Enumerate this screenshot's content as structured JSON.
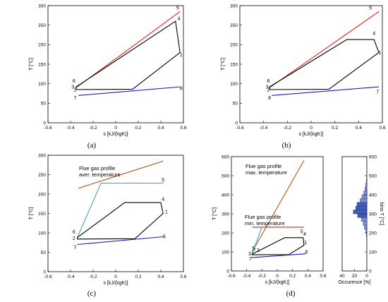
{
  "colors": {
    "red": "#e8201a",
    "brown": "#b5541a",
    "black": "#000000",
    "blue": "#1a1acc",
    "cyan": "#4aa3c6",
    "hist_fill": "#7b8fd6",
    "hist_fill_dark": "#3e5db3"
  },
  "chart_data": [
    {
      "type": "line",
      "panel_label": "(a)",
      "xlabel": "s [kJ/(kgK)]",
      "ylabel": "T [°C]",
      "xlim": [
        -0.6,
        0.6
      ],
      "ylim": [
        0,
        300
      ],
      "xticks": [
        -0.6,
        -0.4,
        -0.2,
        0,
        0.2,
        0.4,
        0.6
      ],
      "yticks": [
        0,
        50,
        100,
        150,
        200,
        250,
        300
      ],
      "xtick_labels": [
        "-0.6",
        "-0.4",
        "-0.2",
        "0",
        "0.2",
        "0.4",
        "0.6"
      ],
      "ytick_labels": [
        "0",
        "50",
        "100",
        "150",
        "200",
        "250",
        "300"
      ],
      "series": [
        {
          "color": "red",
          "x": [
            -0.35,
            0.1,
            0.57
          ],
          "y": [
            90,
            185,
            285
          ]
        },
        {
          "color": "black",
          "closed": true,
          "x": [
            -0.35,
            0.15,
            0.57,
            0.53,
            -0.35
          ],
          "y": [
            85,
            86,
            180,
            260,
            92
          ]
        },
        {
          "color": "blue",
          "x": [
            -0.33,
            0.57
          ],
          "y": [
            70,
            92
          ]
        }
      ],
      "point_labels": [
        {
          "label": "1",
          "x": 0.58,
          "y": 170
        },
        {
          "label": "2",
          "x": -0.36,
          "y": 80
        },
        {
          "label": "3",
          "x": -0.38,
          "y": 88
        },
        {
          "label": "4",
          "x": 0.56,
          "y": 263
        },
        {
          "label": "5",
          "x": 0.55,
          "y": 290
        },
        {
          "label": "6",
          "x": -0.37,
          "y": 103
        },
        {
          "label": "7",
          "x": -0.36,
          "y": 60
        },
        {
          "label": "8",
          "x": 0.58,
          "y": 84
        }
      ]
    },
    {
      "type": "line",
      "panel_label": "(b)",
      "xlabel": "s [kJ/(kgK)]",
      "ylabel": "T [°C]",
      "xlim": [
        -0.6,
        0.6
      ],
      "ylim": [
        0,
        300
      ],
      "xticks": [
        -0.6,
        -0.4,
        -0.2,
        0,
        0.2,
        0.4,
        0.6
      ],
      "yticks": [
        0,
        50,
        100,
        150,
        200,
        250,
        300
      ],
      "xtick_labels": [
        "-0.6",
        "-0.4",
        "-0.2",
        "0",
        "0.2",
        "0.4",
        "0.6"
      ],
      "ytick_labels": [
        "0",
        "50",
        "100",
        "150",
        "200",
        "250",
        "300"
      ],
      "series": [
        {
          "color": "red",
          "x": [
            -0.35,
            0.1,
            0.57
          ],
          "y": [
            90,
            185,
            285
          ]
        },
        {
          "color": "black",
          "closed": true,
          "x": [
            -0.35,
            0.15,
            0.57,
            0.53,
            0.3,
            -0.35
          ],
          "y": [
            85,
            86,
            180,
            213,
            213,
            92
          ]
        },
        {
          "color": "blue",
          "x": [
            -0.33,
            0.57
          ],
          "y": [
            70,
            92
          ]
        }
      ],
      "point_labels": [
        {
          "label": "1",
          "x": 0.58,
          "y": 175
        },
        {
          "label": "2",
          "x": -0.36,
          "y": 80
        },
        {
          "label": "3",
          "x": -0.37,
          "y": 88
        },
        {
          "label": "4",
          "x": 0.53,
          "y": 225
        },
        {
          "label": "5",
          "x": 0.5,
          "y": 290
        },
        {
          "label": "6",
          "x": -0.36,
          "y": 103
        },
        {
          "label": "7",
          "x": 0.56,
          "y": 75
        },
        {
          "label": "8",
          "x": -0.35,
          "y": 60
        }
      ]
    },
    {
      "type": "line",
      "panel_label": "(c)",
      "xlabel": "s [kJ/(kgK)]",
      "ylabel": "T [°C]",
      "xlim": [
        -0.6,
        0.6
      ],
      "ylim": [
        0,
        300
      ],
      "xticks": [
        -0.6,
        -0.4,
        -0.2,
        0,
        0.2,
        0.4,
        0.6
      ],
      "yticks": [
        0,
        50,
        100,
        150,
        200,
        250,
        300
      ],
      "xtick_labels": [
        "-0.6",
        "-0.4",
        "-0.2",
        "0",
        "0.2",
        "0.4",
        "0.6"
      ],
      "ytick_labels": [
        "0",
        "50",
        "100",
        "150",
        "200",
        "250",
        "300"
      ],
      "annotation": [
        "Flue gas profile",
        "aver. temperature"
      ],
      "series": [
        {
          "color": "brown",
          "x": [
            -0.33,
            0.42
          ],
          "y": [
            215,
            285
          ]
        },
        {
          "color": "cyan",
          "x": [
            -0.34,
            -0.13,
            0.42
          ],
          "y": [
            88,
            228,
            228
          ]
        },
        {
          "color": "black",
          "closed": true,
          "x": [
            -0.34,
            0.17,
            0.42,
            0.4,
            0.08,
            -0.34
          ],
          "y": [
            84,
            85,
            150,
            178,
            178,
            88
          ]
        },
        {
          "color": "blue",
          "x": [
            -0.34,
            0.42
          ],
          "y": [
            70,
            90
          ]
        }
      ],
      "point_labels": [
        {
          "label": "1",
          "x": 0.45,
          "y": 150
        },
        {
          "label": "2",
          "x": -0.37,
          "y": 82
        },
        {
          "label": "4",
          "x": 0.42,
          "y": 183
        },
        {
          "label": "5",
          "x": 0.42,
          "y": 232
        },
        {
          "label": "6",
          "x": -0.37,
          "y": 98
        },
        {
          "label": "7",
          "x": -0.36,
          "y": 58
        },
        {
          "label": "8",
          "x": 0.43,
          "y": 86
        }
      ]
    },
    {
      "type": "line",
      "panel_label": "(d)",
      "xlabel": "s [kJ/(kgK)]",
      "ylabel": "T [°C]",
      "xlim": [
        -0.6,
        0.6
      ],
      "ylim": [
        0,
        600
      ],
      "xticks": [
        -0.6,
        -0.4,
        -0.2,
        0,
        0.2,
        0.4,
        0.6
      ],
      "yticks": [
        0,
        100,
        200,
        300,
        400,
        500,
        600
      ],
      "xtick_labels": [
        "-0.6",
        "-0.4",
        "-0.2",
        "0",
        "0.2",
        "0.4",
        "0.6"
      ],
      "ytick_labels": [
        "0",
        "100",
        "200",
        "300",
        "400",
        "500",
        "600"
      ],
      "annotations": [
        {
          "lines": [
            "Flue gas profile",
            "max. temperature"
          ]
        },
        {
          "lines": [
            "Flue gas profile",
            "min. temperature"
          ]
        }
      ],
      "series": [
        {
          "color": "brown",
          "x": [
            -0.33,
            0.35
          ],
          "y": [
            100,
            580
          ]
        },
        {
          "color": "red",
          "x": [
            -0.33,
            0.35
          ],
          "y": [
            230,
            230
          ]
        },
        {
          "color": "black",
          "closed": true,
          "x": [
            -0.33,
            0.15,
            0.35,
            0.34,
            0.1,
            -0.33
          ],
          "y": [
            85,
            86,
            135,
            175,
            175,
            88
          ]
        },
        {
          "color": "blue",
          "x": [
            -0.34,
            0.37
          ],
          "y": [
            70,
            90
          ]
        },
        {
          "color": "cyan",
          "x": [
            -0.33,
            -0.2
          ],
          "y": [
            92,
            230
          ]
        },
        {
          "color": "cyan",
          "x": [
            -0.33,
            -0.28
          ],
          "y": [
            92,
            120
          ]
        }
      ],
      "point_labels": [
        {
          "label": "1",
          "x": 0.37,
          "y": 140
        },
        {
          "label": "2",
          "x": -0.25,
          "y": 100
        },
        {
          "label": "3",
          "x": -0.36,
          "y": 82
        },
        {
          "label": "4",
          "x": 0.36,
          "y": 185
        },
        {
          "label": "5",
          "x": 0.32,
          "y": 198
        },
        {
          "label": "6",
          "x": -0.31,
          "y": 112
        },
        {
          "label": "7",
          "x": -0.35,
          "y": 55
        },
        {
          "label": "8",
          "x": 0.38,
          "y": 90
        }
      ]
    },
    {
      "type": "bar",
      "orientation": "horizontal",
      "xlabel": "Occurence [%]",
      "ylabel": "bins T [°C]",
      "xlim": [
        0,
        40
      ],
      "x_reversed": true,
      "ylim": [
        0,
        600
      ],
      "xticks": [
        40,
        20,
        0
      ],
      "yticks": [
        0,
        100,
        200,
        300,
        400,
        500,
        600
      ],
      "xtick_labels": [
        "40",
        "20",
        "0"
      ],
      "ytick_labels": [
        "0",
        "100",
        "200",
        "300",
        "400",
        "500",
        "600"
      ],
      "bin_width": 20,
      "bins": [
        160,
        180,
        200,
        220,
        240,
        260,
        280,
        300,
        320,
        340,
        360,
        380,
        400,
        420,
        440,
        460,
        480
      ],
      "values": [
        0.5,
        1,
        2,
        4,
        6,
        9,
        15,
        22,
        18,
        16,
        11,
        8,
        5,
        3,
        2,
        1,
        0.5
      ]
    }
  ]
}
